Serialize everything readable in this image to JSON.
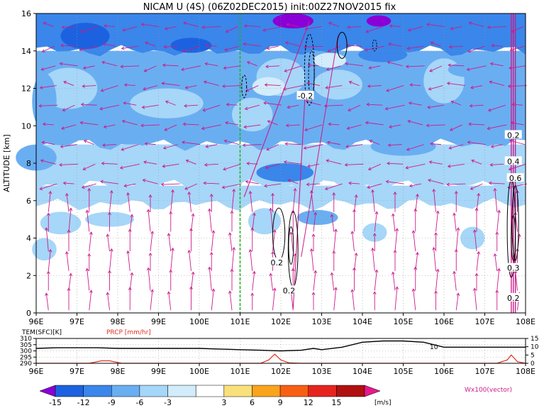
{
  "title": "NICAM U (4S) (06Z02DEC2015) init:00Z27NOV2015 fix",
  "chart_data": [
    {
      "type": "heatmap",
      "title": "NICAM U (4S) (06Z02DEC2015) init:00Z27NOV2015 fix",
      "ylabel": "ALTITUDE [km]",
      "xlim": [
        96,
        108
      ],
      "ylim": [
        0,
        16
      ],
      "x_ticks": [
        "96E",
        "97E",
        "98E",
        "99E",
        "100E",
        "101E",
        "102E",
        "103E",
        "104E",
        "105E",
        "106E",
        "107E",
        "108E"
      ],
      "y_ticks": [
        "0",
        "2",
        "4",
        "6",
        "8",
        "10",
        "12",
        "14",
        "16"
      ],
      "grid": true,
      "reference_line_lon": 101,
      "contour_labels": [
        {
          "text": "-0.2",
          "lon": 102.6,
          "alt": 11.6
        },
        {
          "text": "0.2",
          "lon": 101.9,
          "alt": 2.7
        },
        {
          "text": "0.2",
          "lon": 102.2,
          "alt": 1.2
        },
        {
          "text": "0.2",
          "lon": 107.7,
          "alt": 9.5
        },
        {
          "text": "0.4",
          "lon": 107.7,
          "alt": 8.1
        },
        {
          "text": "0.6",
          "lon": 107.75,
          "alt": 7.2
        },
        {
          "text": "0.3",
          "lon": 107.7,
          "alt": 2.4
        },
        {
          "text": "0.2",
          "lon": 107.7,
          "alt": 0.8
        }
      ],
      "u_field_bands": [
        {
          "alt_from": 0,
          "alt_to": 5.8,
          "value": 0
        },
        {
          "alt_from": 5.8,
          "alt_to": 6.8,
          "value": -4
        },
        {
          "alt_from": 6.8,
          "alt_to": 9,
          "value": -6
        },
        {
          "alt_from": 9,
          "alt_to": 14,
          "value": -8
        },
        {
          "alt_from": 14,
          "alt_to": 16,
          "value": -10
        }
      ],
      "vector_legend": "Wx100(vector)"
    },
    {
      "type": "line",
      "x_ticks": [
        "96E",
        "97E",
        "98E",
        "99E",
        "100E",
        "101E",
        "102E",
        "103E",
        "104E",
        "105E",
        "106E",
        "107E",
        "108E"
      ],
      "left_label": "TEM(SFC)[K]",
      "right_label": "PRCP [mm/hr]",
      "left_ticks": [
        "310",
        "305",
        "300",
        "295",
        "290"
      ],
      "right_ticks": [
        "15",
        "10",
        "5",
        "0"
      ],
      "left_ylim": [
        290,
        310
      ],
      "right_ylim": [
        0,
        15
      ],
      "annotation": "10",
      "series": [
        {
          "name": "TEM(SFC)[K]",
          "color": "#000000",
          "x": [
            96,
            96.5,
            97,
            97.5,
            98,
            98.5,
            99,
            99.5,
            100,
            100.5,
            101,
            101.5,
            102,
            102.5,
            102.8,
            103,
            103.5,
            104,
            104.5,
            105,
            105.5,
            106,
            106.5,
            107,
            107.5,
            108
          ],
          "values": [
            302,
            302.5,
            302.5,
            302.5,
            302,
            302,
            302,
            302,
            302,
            301.5,
            301,
            300.5,
            300,
            300.5,
            302,
            301,
            303,
            307,
            308,
            308,
            307,
            303,
            303,
            303,
            303,
            303
          ]
        },
        {
          "name": "PRCP [mm/hr]",
          "color": "#e03020",
          "x": [
            96,
            97.3,
            97.6,
            97.8,
            98.1,
            98.5,
            101.5,
            101.7,
            101.85,
            102,
            102.2,
            102.5,
            107.3,
            107.55,
            107.65,
            107.8,
            108
          ],
          "values": [
            0,
            0,
            1.5,
            1.5,
            0,
            0,
            0,
            2,
            5.5,
            2,
            0.3,
            0,
            0,
            2,
            5,
            1,
            0
          ]
        }
      ]
    }
  ],
  "colorbar": {
    "ticks": [
      "-15",
      "-12",
      "-9",
      "-6",
      "-3",
      "3",
      "6",
      "9",
      "12",
      "15"
    ],
    "unit": "[m/s]",
    "colors": [
      "#8a00d6",
      "#1c62e0",
      "#3a86ea",
      "#6aaef2",
      "#a6d6f8",
      "#d2ecfb",
      "#ffffff",
      "#f9e07a",
      "#f9a41c",
      "#f76012",
      "#e6241e",
      "#b01010",
      "#e6198a"
    ]
  },
  "vector_legend": "Wx100(vector)"
}
